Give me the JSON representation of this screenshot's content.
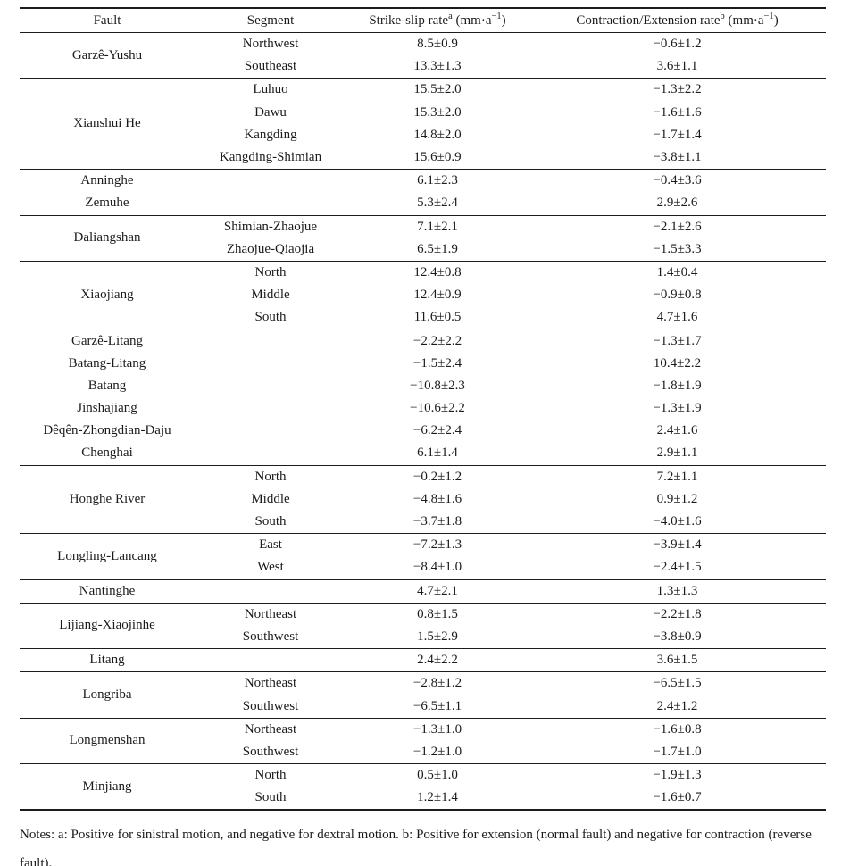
{
  "table": {
    "headers": {
      "fault": "Fault",
      "segment": "Segment",
      "strike_slip": {
        "label": "Strike-slip rate",
        "sup": "a",
        "unit_pre": " (mm·a",
        "unit_sup": "−1",
        "unit_post": ")"
      },
      "contraction_extension": {
        "label": "Contraction/Extension rate",
        "sup": "b",
        "unit_pre": " (mm·a",
        "unit_sup": "−1",
        "unit_post": ")"
      }
    },
    "sections": [
      {
        "groups": [
          {
            "fault": "Garzê-Yushu",
            "rows": [
              {
                "segment": "Northwest",
                "strike_slip": "8.5±0.9",
                "contraction_extension": "−0.6±1.2"
              },
              {
                "segment": "Southeast",
                "strike_slip": "13.3±1.3",
                "contraction_extension": "3.6±1.1"
              }
            ]
          }
        ]
      },
      {
        "groups": [
          {
            "fault": "Xianshui He",
            "rows": [
              {
                "segment": "Luhuo",
                "strike_slip": "15.5±2.0",
                "contraction_extension": "−1.3±2.2"
              },
              {
                "segment": "Dawu",
                "strike_slip": "15.3±2.0",
                "contraction_extension": "−1.6±1.6"
              },
              {
                "segment": "Kangding",
                "strike_slip": "14.8±2.0",
                "contraction_extension": "−1.7±1.4"
              },
              {
                "segment": "Kangding-Shimian",
                "strike_slip": "15.6±0.9",
                "contraction_extension": "−3.8±1.1"
              }
            ]
          }
        ]
      },
      {
        "groups": [
          {
            "fault": "Anninghe",
            "rows": [
              {
                "segment": "",
                "strike_slip": "6.1±2.3",
                "contraction_extension": "−0.4±3.6"
              }
            ]
          },
          {
            "fault": "Zemuhe",
            "rows": [
              {
                "segment": "",
                "strike_slip": "5.3±2.4",
                "contraction_extension": "2.9±2.6"
              }
            ]
          }
        ]
      },
      {
        "groups": [
          {
            "fault": "Daliangshan",
            "rows": [
              {
                "segment": "Shimian-Zhaojue",
                "strike_slip": "7.1±2.1",
                "contraction_extension": "−2.1±2.6"
              },
              {
                "segment": "Zhaojue-Qiaojia",
                "strike_slip": "6.5±1.9",
                "contraction_extension": "−1.5±3.3"
              }
            ]
          }
        ]
      },
      {
        "groups": [
          {
            "fault": "Xiaojiang",
            "rows": [
              {
                "segment": "North",
                "strike_slip": "12.4±0.8",
                "contraction_extension": "1.4±0.4"
              },
              {
                "segment": "Middle",
                "strike_slip": "12.4±0.9",
                "contraction_extension": "−0.9±0.8"
              },
              {
                "segment": "South",
                "strike_slip": "11.6±0.5",
                "contraction_extension": "4.7±1.6"
              }
            ]
          }
        ]
      },
      {
        "groups": [
          {
            "fault": "Garzê-Litang",
            "rows": [
              {
                "segment": "",
                "strike_slip": "−2.2±2.2",
                "contraction_extension": "−1.3±1.7"
              }
            ]
          },
          {
            "fault": "Batang-Litang",
            "rows": [
              {
                "segment": "",
                "strike_slip": "−1.5±2.4",
                "contraction_extension": "10.4±2.2"
              }
            ]
          },
          {
            "fault": "Batang",
            "rows": [
              {
                "segment": "",
                "strike_slip": "−10.8±2.3",
                "contraction_extension": "−1.8±1.9"
              }
            ]
          },
          {
            "fault": "Jinshajiang",
            "rows": [
              {
                "segment": "",
                "strike_slip": "−10.6±2.2",
                "contraction_extension": "−1.3±1.9"
              }
            ]
          },
          {
            "fault": "Dêqên-Zhongdian-Daju",
            "rows": [
              {
                "segment": "",
                "strike_slip": "−6.2±2.4",
                "contraction_extension": "2.4±1.6"
              }
            ]
          },
          {
            "fault": "Chenghai",
            "rows": [
              {
                "segment": "",
                "strike_slip": "6.1±1.4",
                "contraction_extension": "2.9±1.1"
              }
            ]
          }
        ]
      },
      {
        "groups": [
          {
            "fault": "Honghe River",
            "rows": [
              {
                "segment": "North",
                "strike_slip": "−0.2±1.2",
                "contraction_extension": "7.2±1.1"
              },
              {
                "segment": "Middle",
                "strike_slip": "−4.8±1.6",
                "contraction_extension": "0.9±1.2"
              },
              {
                "segment": "South",
                "strike_slip": "−3.7±1.8",
                "contraction_extension": "−4.0±1.6"
              }
            ]
          }
        ]
      },
      {
        "groups": [
          {
            "fault": "Longling-Lancang",
            "rows": [
              {
                "segment": "East",
                "strike_slip": "−7.2±1.3",
                "contraction_extension": "−3.9±1.4"
              },
              {
                "segment": "West",
                "strike_slip": "−8.4±1.0",
                "contraction_extension": "−2.4±1.5"
              }
            ]
          }
        ]
      },
      {
        "groups": [
          {
            "fault": "Nantinghe",
            "rows": [
              {
                "segment": "",
                "strike_slip": "4.7±2.1",
                "contraction_extension": "1.3±1.3"
              }
            ]
          }
        ]
      },
      {
        "groups": [
          {
            "fault": "Lijiang-Xiaojinhe",
            "rows": [
              {
                "segment": "Northeast",
                "strike_slip": "0.8±1.5",
                "contraction_extension": "−2.2±1.8"
              },
              {
                "segment": "Southwest",
                "strike_slip": "1.5±2.9",
                "contraction_extension": "−3.8±0.9"
              }
            ]
          }
        ]
      },
      {
        "groups": [
          {
            "fault": "Litang",
            "rows": [
              {
                "segment": "",
                "strike_slip": "2.4±2.2",
                "contraction_extension": "3.6±1.5"
              }
            ]
          }
        ]
      },
      {
        "groups": [
          {
            "fault": "Longriba",
            "rows": [
              {
                "segment": "Northeast",
                "strike_slip": "−2.8±1.2",
                "contraction_extension": "−6.5±1.5"
              },
              {
                "segment": "Southwest",
                "strike_slip": "−6.5±1.1",
                "contraction_extension": "2.4±1.2"
              }
            ]
          }
        ]
      },
      {
        "groups": [
          {
            "fault": "Longmenshan",
            "rows": [
              {
                "segment": "Northeast",
                "strike_slip": "−1.3±1.0",
                "contraction_extension": "−1.6±0.8"
              },
              {
                "segment": "Southwest",
                "strike_slip": "−1.2±1.0",
                "contraction_extension": "−1.7±1.0"
              }
            ]
          }
        ]
      },
      {
        "groups": [
          {
            "fault": "Minjiang",
            "rows": [
              {
                "segment": "North",
                "strike_slip": "0.5±1.0",
                "contraction_extension": "−1.9±1.3"
              },
              {
                "segment": "South",
                "strike_slip": "1.2±1.4",
                "contraction_extension": "−1.6±0.7"
              }
            ]
          }
        ]
      }
    ]
  },
  "notes": "Notes: a: Positive for sinistral motion, and negative for dextral motion. b: Positive for extension (normal fault) and negative for contraction (reverse fault)."
}
